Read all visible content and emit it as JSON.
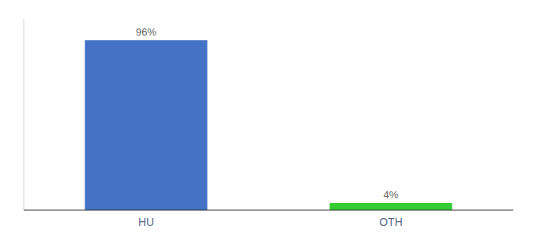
{
  "chart_data": {
    "type": "bar",
    "categories": [
      "HU",
      "OTH"
    ],
    "values": [
      96,
      4
    ],
    "value_labels": [
      "96%",
      "4%"
    ],
    "colors": [
      "#4472c4",
      "#33cc33"
    ],
    "ylim": [
      0,
      108
    ],
    "data_labels": true,
    "tick_labels": "x"
  }
}
